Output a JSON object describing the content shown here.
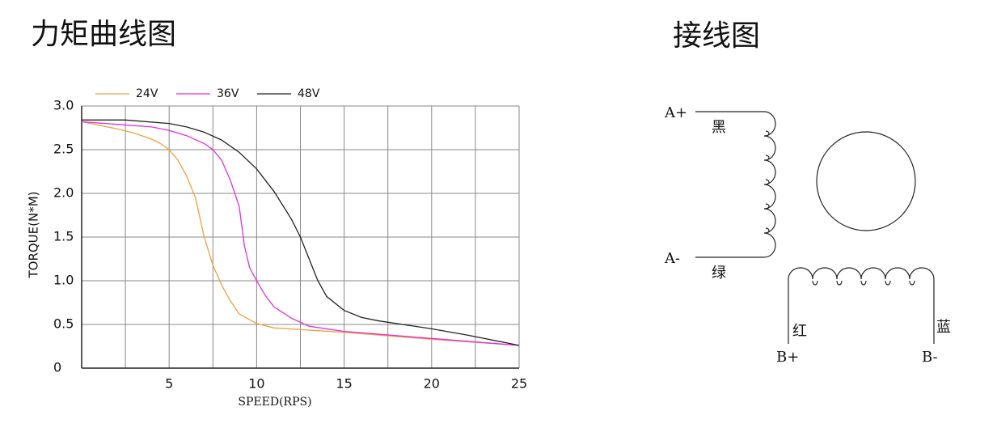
{
  "chart_data": {
    "type": "line",
    "title": "力矩曲线图",
    "xlabel": "SPEED(RPS)",
    "ylabel": "TORQUE(N*M)",
    "xlim": [
      0,
      25
    ],
    "ylim": [
      0,
      3
    ],
    "xticks": [
      5,
      10,
      15,
      20,
      25
    ],
    "xgrid": [
      2.5,
      5,
      7.5,
      10,
      12.5,
      15,
      17.5,
      20,
      22.5,
      25
    ],
    "yticks": [
      0,
      {
        "value": 0.5,
        "label": "0.5"
      },
      {
        "value": 1,
        "label": "1.0"
      },
      {
        "value": 1.5,
        "label": "1.5"
      },
      {
        "value": 2,
        "label": "2.0"
      },
      {
        "value": 2.5,
        "label": "2.5"
      },
      {
        "value": 3,
        "label": "3.0"
      }
    ],
    "grid": true,
    "legend": "top",
    "series": [
      {
        "name": "24V",
        "color": "#f0a040",
        "x": [
          0,
          1,
          2,
          3,
          4,
          4.5,
          5,
          5.5,
          6,
          6.5,
          7,
          7.5,
          8,
          8.5,
          9,
          10,
          11,
          15,
          20,
          25
        ],
        "values": [
          2.82,
          2.78,
          2.74,
          2.69,
          2.62,
          2.57,
          2.5,
          2.38,
          2.2,
          1.95,
          1.5,
          1.18,
          0.95,
          0.77,
          0.62,
          0.51,
          0.46,
          0.41,
          0.33,
          0.26
        ]
      },
      {
        "name": "36V",
        "color": "#e030e0",
        "x": [
          0,
          2,
          4,
          5,
          6,
          7,
          7.5,
          8,
          8.5,
          9,
          9.3,
          9.6,
          10,
          10.5,
          11,
          12,
          13,
          15,
          20,
          25
        ],
        "values": [
          2.82,
          2.79,
          2.76,
          2.72,
          2.66,
          2.57,
          2.5,
          2.38,
          2.15,
          1.85,
          1.4,
          1.15,
          1.0,
          0.83,
          0.7,
          0.57,
          0.48,
          0.42,
          0.34,
          0.26
        ]
      },
      {
        "name": "48V",
        "color": "#222222",
        "x": [
          0,
          2.5,
          5,
          6,
          7,
          8,
          9,
          10,
          11,
          12,
          12.5,
          13,
          13.5,
          14,
          15,
          16,
          17,
          18,
          20,
          22,
          25
        ],
        "values": [
          2.84,
          2.84,
          2.8,
          2.76,
          2.7,
          2.61,
          2.47,
          2.28,
          2.02,
          1.7,
          1.5,
          1.25,
          1.0,
          0.82,
          0.66,
          0.58,
          0.54,
          0.51,
          0.45,
          0.38,
          0.26
        ]
      }
    ]
  },
  "wiring": {
    "title": "接线图",
    "a_plus": "A+",
    "a_minus": "A-",
    "black": "黑",
    "green": "绿",
    "red": "红",
    "blue": "蓝",
    "b_plus": "B+",
    "b_minus": "B-"
  }
}
